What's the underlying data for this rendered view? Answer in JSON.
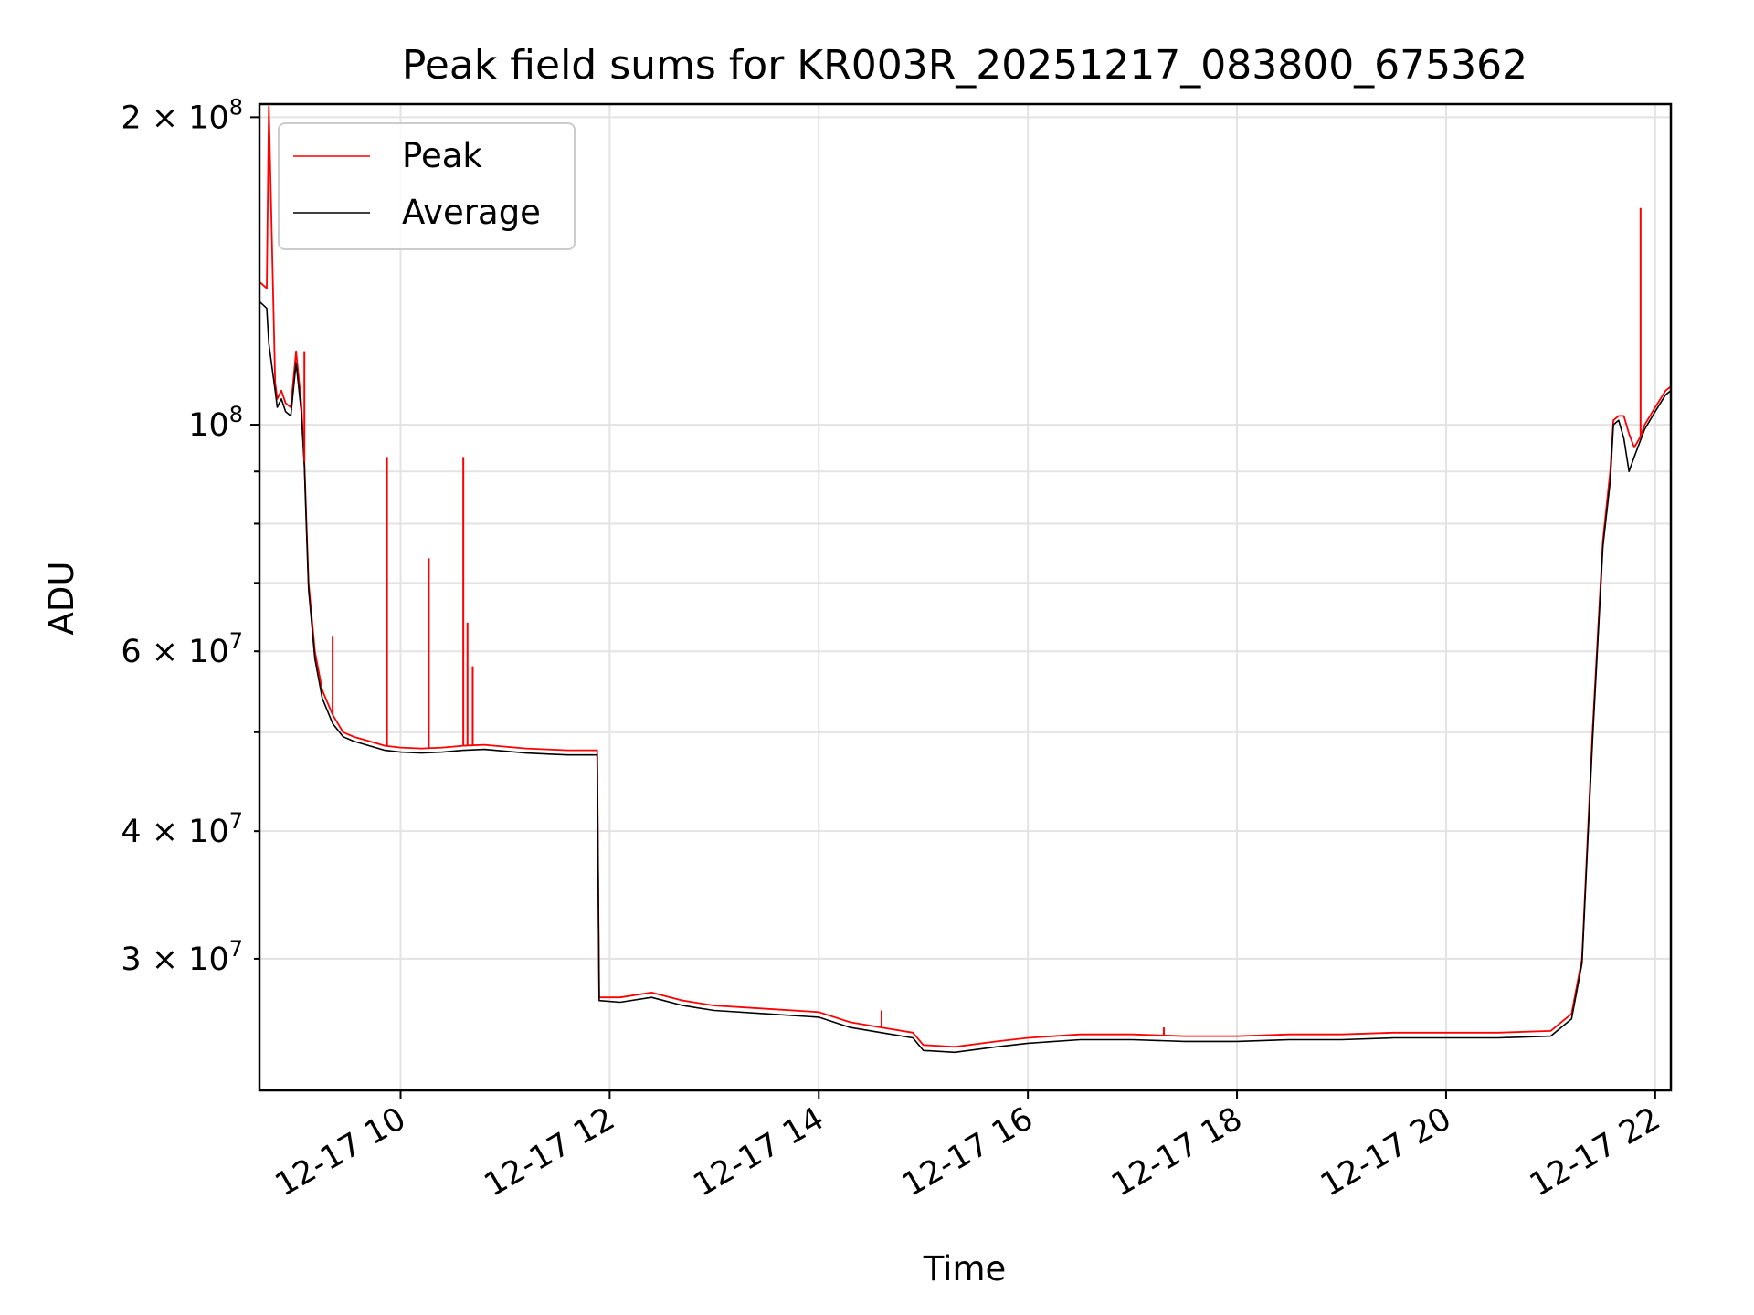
{
  "chart_data": {
    "type": "line",
    "title": "Peak field sums for KR003R_20251217_083800_675362",
    "xlabel": "Time",
    "ylabel": "ADU",
    "yscale": "log",
    "ylim": [
      22300000,
      206000000
    ],
    "xlim": [
      8.65,
      22.15
    ],
    "grid": true,
    "legend_position": "top-left",
    "x_ticks": [
      {
        "value": 10,
        "label": "12-17 10"
      },
      {
        "value": 12,
        "label": "12-17 12"
      },
      {
        "value": 14,
        "label": "12-17 14"
      },
      {
        "value": 16,
        "label": "12-17 16"
      },
      {
        "value": 18,
        "label": "12-17 18"
      },
      {
        "value": 20,
        "label": "12-17 20"
      },
      {
        "value": 22,
        "label": "12-17 22"
      }
    ],
    "y_major_ticks": [
      {
        "value": 100000000,
        "mantissa": "",
        "exponent": "8"
      },
      {
        "value": 200000000,
        "mantissa": "2",
        "exponent": "8"
      }
    ],
    "y_minor_ticks": [
      {
        "value": 30000000,
        "mantissa": "3",
        "exponent": "7"
      },
      {
        "value": 40000000,
        "mantissa": "4",
        "exponent": "7"
      },
      {
        "value": 50000000,
        "label": ""
      },
      {
        "value": 60000000,
        "mantissa": "6",
        "exponent": "7"
      },
      {
        "value": 70000000,
        "label": ""
      },
      {
        "value": 80000000,
        "label": ""
      },
      {
        "value": 90000000,
        "label": ""
      }
    ],
    "series": [
      {
        "name": "Peak",
        "color": "#ff0000",
        "x": [
          8.65,
          8.72,
          8.74,
          8.8,
          8.82,
          8.86,
          8.9,
          8.95,
          9.0,
          9.05,
          9.08,
          9.1,
          9.12,
          9.18,
          9.25,
          9.35,
          9.45,
          9.55,
          9.7,
          9.85,
          10.0,
          10.2,
          10.4,
          10.6,
          10.8,
          11.0,
          11.2,
          11.4,
          11.6,
          11.88,
          11.9,
          12.1,
          12.4,
          12.7,
          13.0,
          13.5,
          14.0,
          14.3,
          14.6,
          14.9,
          15.0,
          15.3,
          15.7,
          16.0,
          16.5,
          17.0,
          17.5,
          18.0,
          18.5,
          19.0,
          19.5,
          20.0,
          20.5,
          21.0,
          21.2,
          21.3,
          21.4,
          21.5,
          21.57,
          21.6,
          21.65,
          21.7,
          21.75,
          21.8,
          21.85,
          21.9,
          22.0,
          22.1,
          22.15
        ],
        "values": [
          138000000,
          136000000,
          205000000,
          110000000,
          106000000,
          108000000,
          105000000,
          104000000,
          118000000,
          105000000,
          92000000,
          80000000,
          70000000,
          60000000,
          55000000,
          52000000,
          50000000,
          49500000,
          49000000,
          48500000,
          48300000,
          48200000,
          48300000,
          48500000,
          48600000,
          48400000,
          48200000,
          48100000,
          48000000,
          48000000,
          27500000,
          27500000,
          27800000,
          27300000,
          27000000,
          26800000,
          26600000,
          26000000,
          25700000,
          25400000,
          24700000,
          24600000,
          24900000,
          25100000,
          25300000,
          25300000,
          25200000,
          25200000,
          25300000,
          25300000,
          25400000,
          25400000,
          25400000,
          25500000,
          26500000,
          30000000,
          50000000,
          77000000,
          90000000,
          101000000,
          102000000,
          102000000,
          98000000,
          95000000,
          97000000,
          100000000,
          104000000,
          108000000,
          109000000
        ],
        "spikes": [
          {
            "x": 8.74,
            "value": 205000000
          },
          {
            "x": 9.08,
            "value": 118000000
          },
          {
            "x": 9.35,
            "value": 62000000
          },
          {
            "x": 9.87,
            "value": 93000000
          },
          {
            "x": 10.27,
            "value": 74000000
          },
          {
            "x": 10.6,
            "value": 93000000
          },
          {
            "x": 10.64,
            "value": 64000000
          },
          {
            "x": 10.69,
            "value": 58000000
          },
          {
            "x": 14.6,
            "value": 26700000
          },
          {
            "x": 17.3,
            "value": 25700000
          },
          {
            "x": 21.86,
            "value": 163000000
          }
        ]
      },
      {
        "name": "Average",
        "color": "#000000",
        "x": [
          8.65,
          8.72,
          8.74,
          8.8,
          8.82,
          8.86,
          8.9,
          8.95,
          9.0,
          9.05,
          9.08,
          9.1,
          9.12,
          9.18,
          9.25,
          9.35,
          9.45,
          9.55,
          9.7,
          9.85,
          10.0,
          10.2,
          10.4,
          10.6,
          10.8,
          11.0,
          11.2,
          11.4,
          11.6,
          11.88,
          11.9,
          12.1,
          12.4,
          12.7,
          13.0,
          13.5,
          14.0,
          14.3,
          14.6,
          14.9,
          15.0,
          15.3,
          15.7,
          16.0,
          16.5,
          17.0,
          17.5,
          18.0,
          18.5,
          19.0,
          19.5,
          20.0,
          20.5,
          21.0,
          21.2,
          21.3,
          21.4,
          21.5,
          21.57,
          21.6,
          21.65,
          21.7,
          21.75,
          21.8,
          21.85,
          21.9,
          22.0,
          22.1,
          22.15
        ],
        "values": [
          132000000,
          130000000,
          120000000,
          108000000,
          104000000,
          106000000,
          103000000,
          102000000,
          115000000,
          103000000,
          91000000,
          79000000,
          69000000,
          59000000,
          54000000,
          51000000,
          49500000,
          49000000,
          48500000,
          48000000,
          47800000,
          47700000,
          47800000,
          48000000,
          48100000,
          47900000,
          47700000,
          47600000,
          47500000,
          47500000,
          27300000,
          27200000,
          27500000,
          27000000,
          26700000,
          26500000,
          26300000,
          25700000,
          25400000,
          25100000,
          24400000,
          24300000,
          24600000,
          24800000,
          25000000,
          25000000,
          24900000,
          24900000,
          25000000,
          25000000,
          25100000,
          25100000,
          25100000,
          25200000,
          26200000,
          29700000,
          49000000,
          76000000,
          88000000,
          100000000,
          101000000,
          97000000,
          90000000,
          93000000,
          96000000,
          99000000,
          103000000,
          107000000,
          108000000
        ]
      }
    ]
  }
}
